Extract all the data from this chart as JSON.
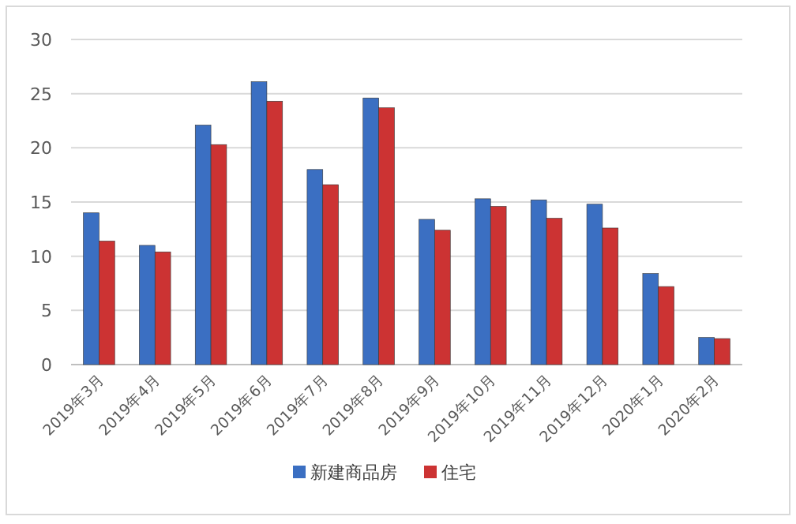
{
  "chart_data": {
    "type": "bar",
    "categories": [
      "2019年3月",
      "2019年4月",
      "2019年5月",
      "2019年6月",
      "2019年7月",
      "2019年8月",
      "2019年9月",
      "2019年10月",
      "2019年11月",
      "2019年12月",
      "2020年1月",
      "2020年2月"
    ],
    "series": [
      {
        "name": "新建商品房",
        "color": "#3b6fc2",
        "values": [
          14.0,
          11.0,
          22.1,
          26.1,
          18.0,
          24.6,
          13.4,
          15.3,
          15.2,
          14.8,
          8.4,
          2.5
        ]
      },
      {
        "name": "住宅",
        "color": "#cc3333",
        "values": [
          11.4,
          10.4,
          20.3,
          24.3,
          16.6,
          23.7,
          12.4,
          14.6,
          13.5,
          12.6,
          7.2,
          2.4
        ]
      }
    ],
    "ylim": [
      0,
      30
    ],
    "yticks": [
      0,
      5,
      10,
      15,
      20,
      25,
      30
    ],
    "grid": "y",
    "legend": "bottom"
  }
}
